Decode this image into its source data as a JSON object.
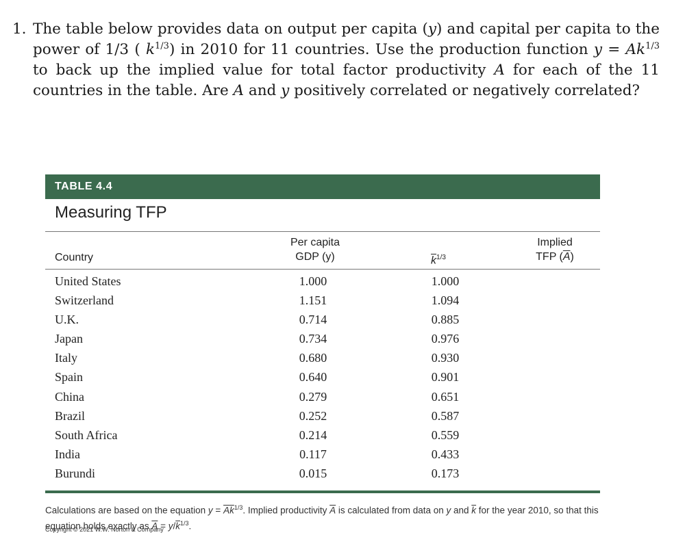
{
  "question": {
    "number": "1.",
    "text_part1": "The table below provides data on output per capita (",
    "y1": "y",
    "text_part2": ") and capital per capita to the power of 1/3 ( ",
    "k1": "k",
    "exp1": "1/3",
    "text_part3": ") in 2010 for 11 countries. Use the production function ",
    "eq_y": "y",
    "eq_mid": " = ",
    "eq_A": "A",
    "eq_k": "k",
    "exp2": "1/3",
    "text_part4": " to back up the implied value for total factor productivity ",
    "A2": "A",
    "text_part5": " for each of the 11 countries in the table. Are ",
    "A3": "A",
    "text_part6": " and ",
    "y2": "y",
    "text_part7": " positively correlated or negatively correlated?"
  },
  "table": {
    "label": "TABLE 4.4",
    "title": "Measuring TFP",
    "col_country": "Country",
    "col_gdp_line1": "Per capita",
    "col_gdp_line2": "GDP (y)",
    "col_k_sym": "k",
    "col_k_exp": "1/3",
    "col_tfp_line1": "Implied",
    "col_tfp_line2_pre": "TFP (",
    "col_tfp_sym": "A",
    "col_tfp_line2_post": ")",
    "rows": [
      {
        "country": "United States",
        "gdp": "1.000",
        "k": "1.000"
      },
      {
        "country": "Switzerland",
        "gdp": "1.151",
        "k": "1.094"
      },
      {
        "country": "U.K.",
        "gdp": "0.714",
        "k": "0.885"
      },
      {
        "country": "Japan",
        "gdp": "0.734",
        "k": "0.976"
      },
      {
        "country": "Italy",
        "gdp": "0.680",
        "k": "0.930"
      },
      {
        "country": "Spain",
        "gdp": "0.640",
        "k": "0.901"
      },
      {
        "country": "China",
        "gdp": "0.279",
        "k": "0.651"
      },
      {
        "country": "Brazil",
        "gdp": "0.252",
        "k": "0.587"
      },
      {
        "country": "South Africa",
        "gdp": "0.214",
        "k": "0.559"
      },
      {
        "country": "India",
        "gdp": "0.117",
        "k": "0.433"
      },
      {
        "country": "Burundi",
        "gdp": "0.015",
        "k": "0.173"
      }
    ],
    "note_part1": "Calculations are based on the equation ",
    "note_y": "y",
    "note_eq": " = ",
    "note_A": "A",
    "note_k": "k",
    "note_exp": "1/3",
    "note_part2": ". Implied productivity ",
    "note_A2": "A",
    "note_part3": " is calculated from data on ",
    "note_y2": "y",
    "note_part4": " and ",
    "note_k2": "k",
    "note_part5": " for the year 2010, so that this equation holds exactly as ",
    "note_A3": "A",
    "note_part6": " = ",
    "note_y3": "y",
    "note_slash": "/",
    "note_k3": "k",
    "note_exp2": "1/3",
    "note_end": ".",
    "copyright": "Copyright © 2021 W.W. Norton & Company"
  }
}
